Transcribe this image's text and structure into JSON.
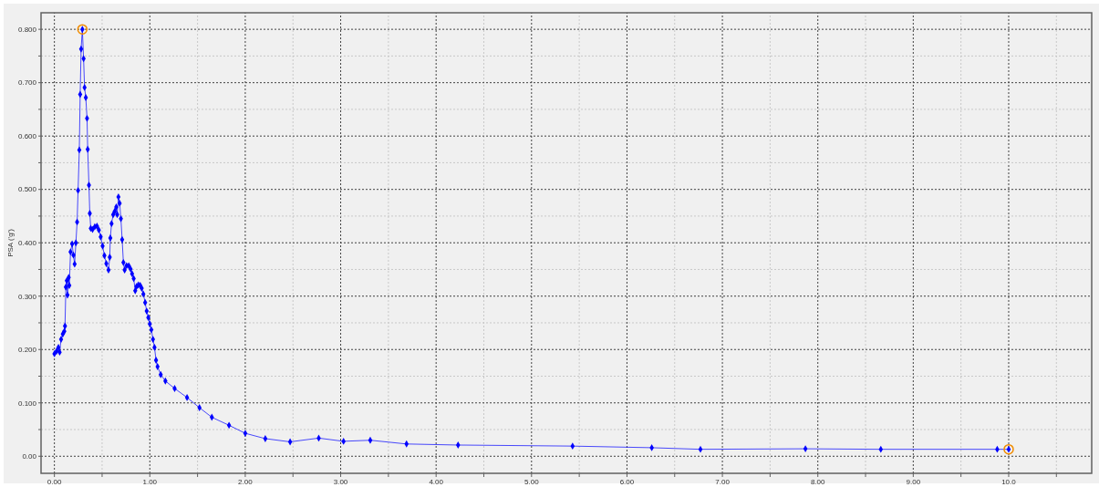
{
  "chart_data": {
    "type": "line",
    "ylabel": "PSA ('g')",
    "xlim": [
      -0.14,
      10.87
    ],
    "ylim": [
      -0.032,
      0.831
    ],
    "xticks": [
      {
        "value": 0,
        "label": "0.00"
      },
      {
        "value": 0.5,
        "label": null
      },
      {
        "value": 1,
        "label": "1.00"
      },
      {
        "value": 1.5,
        "label": null
      },
      {
        "value": 2,
        "label": "2.00"
      },
      {
        "value": 2.5,
        "label": null
      },
      {
        "value": 3,
        "label": "3.00"
      },
      {
        "value": 3.5,
        "label": null
      },
      {
        "value": 4,
        "label": "4.00"
      },
      {
        "value": 4.5,
        "label": null
      },
      {
        "value": 5,
        "label": "5.00"
      },
      {
        "value": 5.5,
        "label": null
      },
      {
        "value": 6,
        "label": "6.00"
      },
      {
        "value": 6.5,
        "label": null
      },
      {
        "value": 7,
        "label": "7.00"
      },
      {
        "value": 7.5,
        "label": null
      },
      {
        "value": 8,
        "label": "8.00"
      },
      {
        "value": 8.5,
        "label": null
      },
      {
        "value": 9,
        "label": "9.00"
      },
      {
        "value": 9.5,
        "label": null
      },
      {
        "value": 10,
        "label": "10.0"
      },
      {
        "value": 10.5,
        "label": null
      }
    ],
    "yticks": [
      {
        "value": 0,
        "label": "0.00"
      },
      {
        "value": 0.05,
        "label": null
      },
      {
        "value": 0.1,
        "label": "0.100"
      },
      {
        "value": 0.15,
        "label": null
      },
      {
        "value": 0.2,
        "label": "0.200"
      },
      {
        "value": 0.25,
        "label": null
      },
      {
        "value": 0.3,
        "label": "0.300"
      },
      {
        "value": 0.35,
        "label": null
      },
      {
        "value": 0.4,
        "label": "0.400"
      },
      {
        "value": 0.45,
        "label": null
      },
      {
        "value": 0.5,
        "label": "0.500"
      },
      {
        "value": 0.55,
        "label": null
      },
      {
        "value": 0.6,
        "label": "0.600"
      },
      {
        "value": 0.65,
        "label": null
      },
      {
        "value": 0.7,
        "label": "0.700"
      },
      {
        "value": 0.75,
        "label": null
      },
      {
        "value": 0.8,
        "label": "0.800"
      }
    ],
    "grid": true,
    "series": [
      {
        "color": "#0000ff",
        "marker": "diamond",
        "line_style": "solid",
        "x": [
          0,
          0.023,
          0.042,
          0.055,
          0.07,
          0.088,
          0.104,
          0.111,
          0.12,
          0.13,
          0.137,
          0.15,
          0.156,
          0.169,
          0.186,
          0.199,
          0.212,
          0.225,
          0.238,
          0.248,
          0.261,
          0.27,
          0.28,
          0.293,
          0.306,
          0.316,
          0.329,
          0.342,
          0.349,
          0.362,
          0.371,
          0.381,
          0.4,
          0.423,
          0.446,
          0.466,
          0.485,
          0.505,
          0.524,
          0.544,
          0.567,
          0.58,
          0.586,
          0.599,
          0.616,
          0.632,
          0.648,
          0.658,
          0.671,
          0.684,
          0.697,
          0.71,
          0.723,
          0.736,
          0.756,
          0.779,
          0.798,
          0.814,
          0.831,
          0.847,
          0.86,
          0.879,
          0.899,
          0.915,
          0.932,
          0.951,
          0.967,
          0.984,
          1.0,
          1.016,
          1.033,
          1.049,
          1.065,
          1.081,
          1.114,
          1.163,
          1.26,
          1.39,
          1.52,
          1.65,
          1.83,
          2.0,
          2.21,
          2.47,
          2.77,
          3.03,
          3.31,
          3.69,
          4.23,
          5.43,
          6.26,
          6.77,
          7.87,
          8.66,
          9.88,
          10.0
        ],
        "values": [
          0.192,
          0.197,
          0.204,
          0.195,
          0.219,
          0.229,
          0.234,
          0.244,
          0.317,
          0.329,
          0.302,
          0.335,
          0.32,
          0.383,
          0.398,
          0.377,
          0.36,
          0.4,
          0.439,
          0.498,
          0.574,
          0.678,
          0.763,
          0.8,
          0.745,
          0.691,
          0.672,
          0.633,
          0.575,
          0.508,
          0.455,
          0.427,
          0.425,
          0.43,
          0.431,
          0.424,
          0.411,
          0.394,
          0.376,
          0.361,
          0.349,
          0.373,
          0.409,
          0.436,
          0.453,
          0.459,
          0.467,
          0.453,
          0.486,
          0.474,
          0.445,
          0.406,
          0.363,
          0.349,
          0.357,
          0.357,
          0.351,
          0.342,
          0.333,
          0.31,
          0.318,
          0.321,
          0.32,
          0.315,
          0.304,
          0.288,
          0.272,
          0.26,
          0.248,
          0.237,
          0.219,
          0.204,
          0.18,
          0.168,
          0.153,
          0.141,
          0.127,
          0.11,
          0.091,
          0.073,
          0.058,
          0.043,
          0.033,
          0.027,
          0.034,
          0.028,
          0.03,
          0.023,
          0.021,
          0.019,
          0.016,
          0.013,
          0.014,
          0.013,
          0.013,
          0.013
        ]
      },
      {
        "type": "scatter",
        "color": "#f08c00",
        "marker": "circle",
        "x": [
          0.293,
          10.0
        ],
        "values": [
          0.8,
          0.013
        ]
      }
    ]
  }
}
